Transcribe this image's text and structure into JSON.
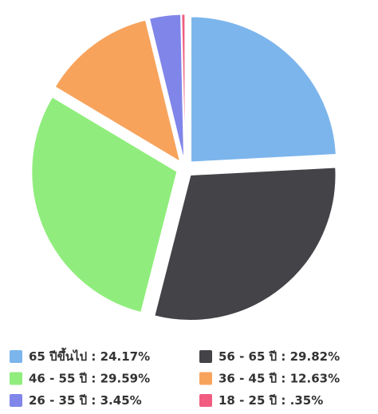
{
  "chart_data": {
    "type": "pie",
    "categories": [
      "65 ปีขึ้นไป",
      "56 - 65 ปี",
      "46 - 55 ปี",
      "36 - 45 ปี",
      "26 - 35 ปี",
      "18 - 25 ปี"
    ],
    "values": [
      24.17,
      29.82,
      29.59,
      12.63,
      3.45,
      0.35
    ],
    "value_labels": [
      "24.17%",
      "29.82%",
      "29.59%",
      "12.63%",
      "3.45%",
      ".35%"
    ],
    "label_separator": " : ",
    "colors": [
      "#7cb5ec",
      "#434348",
      "#90ed7d",
      "#f7a35c",
      "#8085e9",
      "#f15c80"
    ]
  }
}
